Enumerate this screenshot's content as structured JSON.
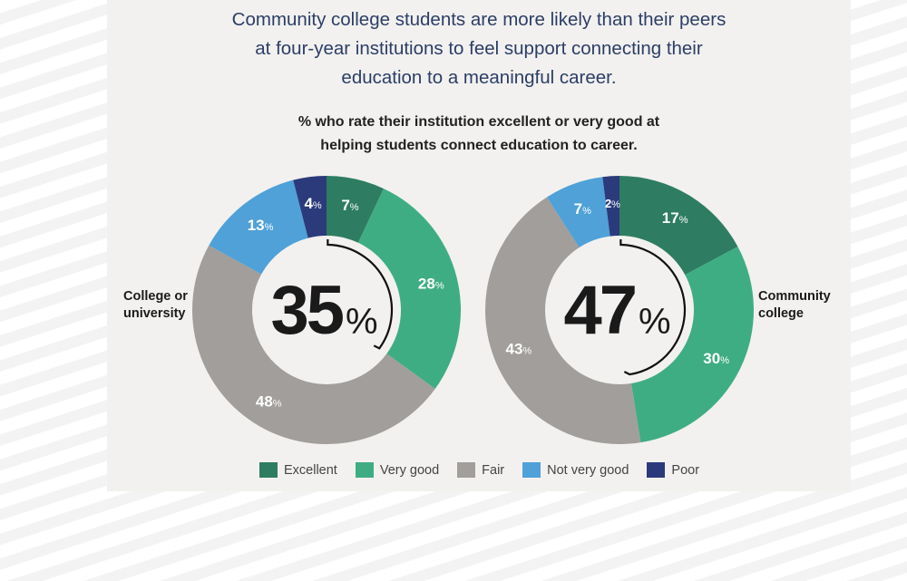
{
  "title": [
    "Community college students are more likely than their peers",
    "at four-year institutions to feel support connecting their",
    "education to a meaningful career."
  ],
  "subtitle": [
    "% who rate their institution excellent or very good at",
    "helping students connect education to career."
  ],
  "colors": {
    "Excellent": "#2e7d62",
    "Very good": "#3fad84",
    "Fair": "#a19e9b",
    "Not very good": "#4fa1d8",
    "Poor": "#2b3a7b",
    "panel": "#f2f1ef"
  },
  "chart_data": [
    {
      "type": "pie",
      "donut": true,
      "label": "College or university",
      "center_value": "35",
      "center_unit": "%",
      "categories": [
        "Excellent",
        "Very good",
        "Fair",
        "Not very good",
        "Poor"
      ],
      "values": [
        7,
        28,
        48,
        13,
        4
      ]
    },
    {
      "type": "pie",
      "donut": true,
      "label": "Community college",
      "center_value": "47",
      "center_unit": "%",
      "categories": [
        "Excellent",
        "Very good",
        "Fair",
        "Not very good",
        "Poor"
      ],
      "values": [
        17,
        30,
        43,
        7,
        2
      ]
    }
  ],
  "chart_labels": [
    "College or university",
    "Community college"
  ],
  "legend": [
    "Excellent",
    "Very good",
    "Fair",
    "Not very good",
    "Poor"
  ]
}
